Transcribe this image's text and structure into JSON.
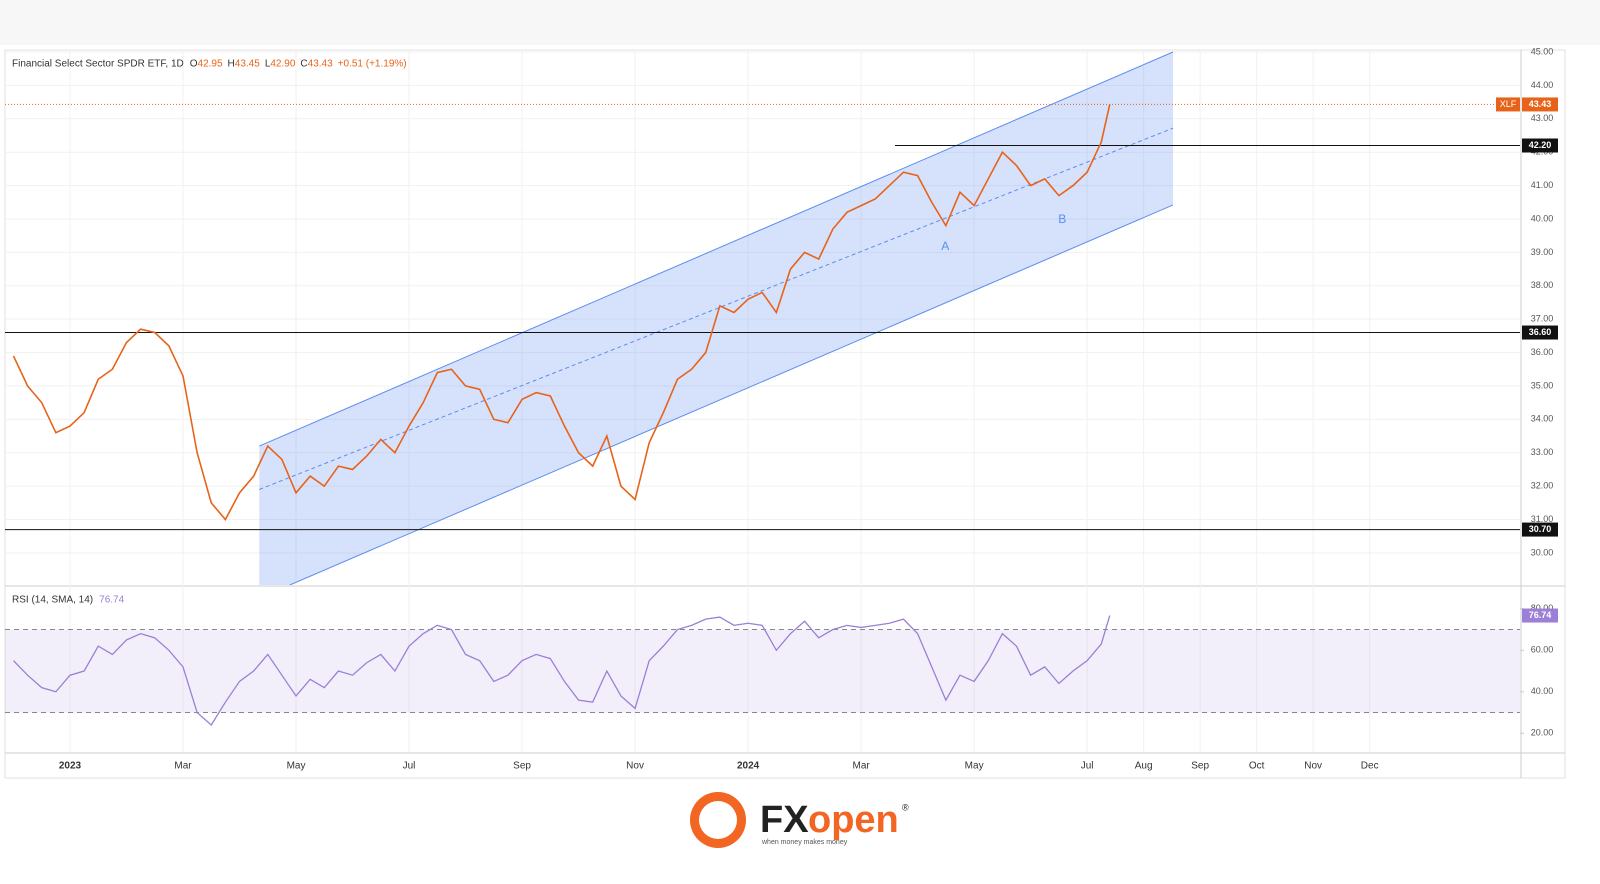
{
  "chart_data": {
    "type": "line",
    "title": "Financial Select Sector SPDR ETF, 1D",
    "ohlc": [
      {
        "key": "O",
        "value": "42.95"
      },
      {
        "key": "H",
        "value": "43.45"
      },
      {
        "key": "L",
        "value": "42.90"
      },
      {
        "key": "C",
        "value": "43.43"
      }
    ],
    "change": "+0.51 (+1.19%)",
    "x": [
      -1.0,
      -0.75,
      -0.5,
      -0.25,
      0,
      0.25,
      0.5,
      0.75,
      1.0,
      1.25,
      1.5,
      1.75,
      2.0,
      2.25,
      2.5,
      2.75,
      3.0,
      3.25,
      3.5,
      3.75,
      4.0,
      4.25,
      4.5,
      4.75,
      5.0,
      5.25,
      5.5,
      5.75,
      6.0,
      6.25,
      6.5,
      6.75,
      7.0,
      7.25,
      7.5,
      7.75,
      8.0,
      8.25,
      8.5,
      8.75,
      9.0,
      9.25,
      9.5,
      9.75,
      10.0,
      10.25,
      10.5,
      10.75,
      11.0,
      11.25,
      11.5,
      11.75,
      12.0,
      12.25,
      12.5,
      12.75,
      13.0,
      13.25,
      13.5,
      13.75,
      14.0,
      14.25,
      14.5,
      14.75,
      15.0,
      15.25,
      15.5,
      15.75,
      16.0,
      16.25,
      16.5,
      16.75,
      17.0,
      17.25,
      17.5,
      17.75,
      18.0,
      18.25,
      18.4
    ],
    "xlim": [
      -1.15,
      25.66
    ],
    "xticks": [
      {
        "value": 0,
        "label": "2023"
      },
      {
        "value": 2,
        "label": "Mar"
      },
      {
        "value": 4,
        "label": "May"
      },
      {
        "value": 6,
        "label": "Jul"
      },
      {
        "value": 8,
        "label": "Sep"
      },
      {
        "value": 10,
        "label": "Nov"
      },
      {
        "value": 12,
        "label": "2024"
      },
      {
        "value": 14,
        "label": "Mar"
      },
      {
        "value": 16,
        "label": "May"
      },
      {
        "value": 18,
        "label": "Jul"
      },
      {
        "value": 19,
        "label": "Aug"
      },
      {
        "value": 20,
        "label": "Sep"
      },
      {
        "value": 21,
        "label": "Oct"
      },
      {
        "value": 22,
        "label": "Nov"
      },
      {
        "value": 23,
        "label": "Dec"
      }
    ],
    "series": [
      {
        "name": "XLF",
        "color": "#e8631a",
        "values": [
          35.9,
          35.0,
          34.5,
          33.6,
          33.8,
          34.2,
          35.2,
          35.5,
          36.3,
          36.7,
          36.6,
          36.2,
          35.3,
          33.0,
          31.5,
          31.0,
          31.8,
          32.3,
          33.2,
          32.8,
          31.8,
          32.3,
          32.0,
          32.6,
          32.5,
          32.9,
          33.4,
          33.0,
          33.8,
          34.5,
          35.4,
          35.5,
          35.0,
          34.9,
          34.0,
          33.9,
          34.6,
          34.8,
          34.7,
          33.8,
          33.0,
          32.6,
          33.5,
          32.0,
          31.6,
          33.3,
          34.2,
          35.2,
          35.5,
          36.0,
          37.4,
          37.2,
          37.6,
          37.8,
          37.2,
          38.5,
          39.0,
          38.8,
          39.7,
          40.2,
          40.4,
          40.6,
          41.0,
          41.4,
          41.3,
          40.5,
          39.8,
          40.8,
          40.4,
          41.2,
          42.0,
          41.6,
          41.0,
          41.2,
          40.7,
          41.0,
          41.4,
          42.3,
          43.43
        ]
      }
    ],
    "ylim": [
      29.04,
      45.06
    ],
    "yticks": [
      {
        "value": 30,
        "label": "30.00"
      },
      {
        "value": 31,
        "label": "31.00"
      },
      {
        "value": 32,
        "label": "32.00"
      },
      {
        "value": 33,
        "label": "33.00"
      },
      {
        "value": 34,
        "label": "34.00"
      },
      {
        "value": 35,
        "label": "35.00"
      },
      {
        "value": 36,
        "label": "36.00"
      },
      {
        "value": 37,
        "label": "37.00"
      },
      {
        "value": 38,
        "label": "38.00"
      },
      {
        "value": 39,
        "label": "39.00"
      },
      {
        "value": 40,
        "label": "40.00"
      },
      {
        "value": 41,
        "label": "41.00"
      },
      {
        "value": 42,
        "label": "42.00"
      },
      {
        "value": 43,
        "label": "43.00"
      },
      {
        "value": 44,
        "label": "44.00"
      },
      {
        "value": 45,
        "label": "45.00"
      }
    ],
    "grid": true,
    "levels": [
      {
        "value": 42.2,
        "label": "42.20",
        "from": 14.6
      },
      {
        "value": 36.6,
        "label": "36.60"
      },
      {
        "value": 30.7,
        "label": "30.70"
      }
    ],
    "channel": {
      "color": "#5b8def",
      "upper": [
        [
          3.35,
          33.2
        ],
        [
          19.52,
          45.0
        ]
      ],
      "middle": [
        [
          3.35,
          31.9
        ],
        [
          19.52,
          42.72
        ]
      ],
      "lower": [
        [
          3.89,
          29.04
        ],
        [
          19.52,
          40.42
        ]
      ]
    },
    "annotations": [
      {
        "text": "A",
        "x": 15.49,
        "y": 39.16
      },
      {
        "text": "B",
        "x": 17.56,
        "y": 39.97
      }
    ],
    "rsi": {
      "name": "RSI (14, SMA, 14)",
      "color": "#9c7fd6",
      "values": [
        55,
        48,
        42,
        40,
        48,
        50,
        62,
        58,
        65,
        68,
        66,
        60,
        52,
        30,
        24,
        35,
        45,
        50,
        58,
        48,
        38,
        46,
        42,
        50,
        48,
        54,
        58,
        50,
        62,
        68,
        72,
        70,
        58,
        55,
        45,
        48,
        55,
        58,
        56,
        45,
        36,
        35,
        50,
        38,
        32,
        55,
        62,
        70,
        72,
        75,
        76,
        72,
        73,
        72,
        60,
        68,
        74,
        66,
        70,
        72,
        71,
        72,
        73,
        75,
        68,
        52,
        36,
        48,
        45,
        55,
        68,
        62,
        48,
        52,
        44,
        50,
        55,
        63,
        76.74
      ],
      "ylim": [
        11,
        90
      ],
      "yticks": [
        {
          "value": 20,
          "label": "20.00"
        },
        {
          "value": 40,
          "label": "40.00"
        },
        {
          "value": 60,
          "label": "60.00"
        },
        {
          "value": 80,
          "label": "80.00"
        }
      ],
      "band": [
        30,
        70
      ]
    }
  },
  "branding": {
    "fx": "FX",
    "open": "open",
    "tagline": "when money makes money",
    "mark": "®"
  }
}
